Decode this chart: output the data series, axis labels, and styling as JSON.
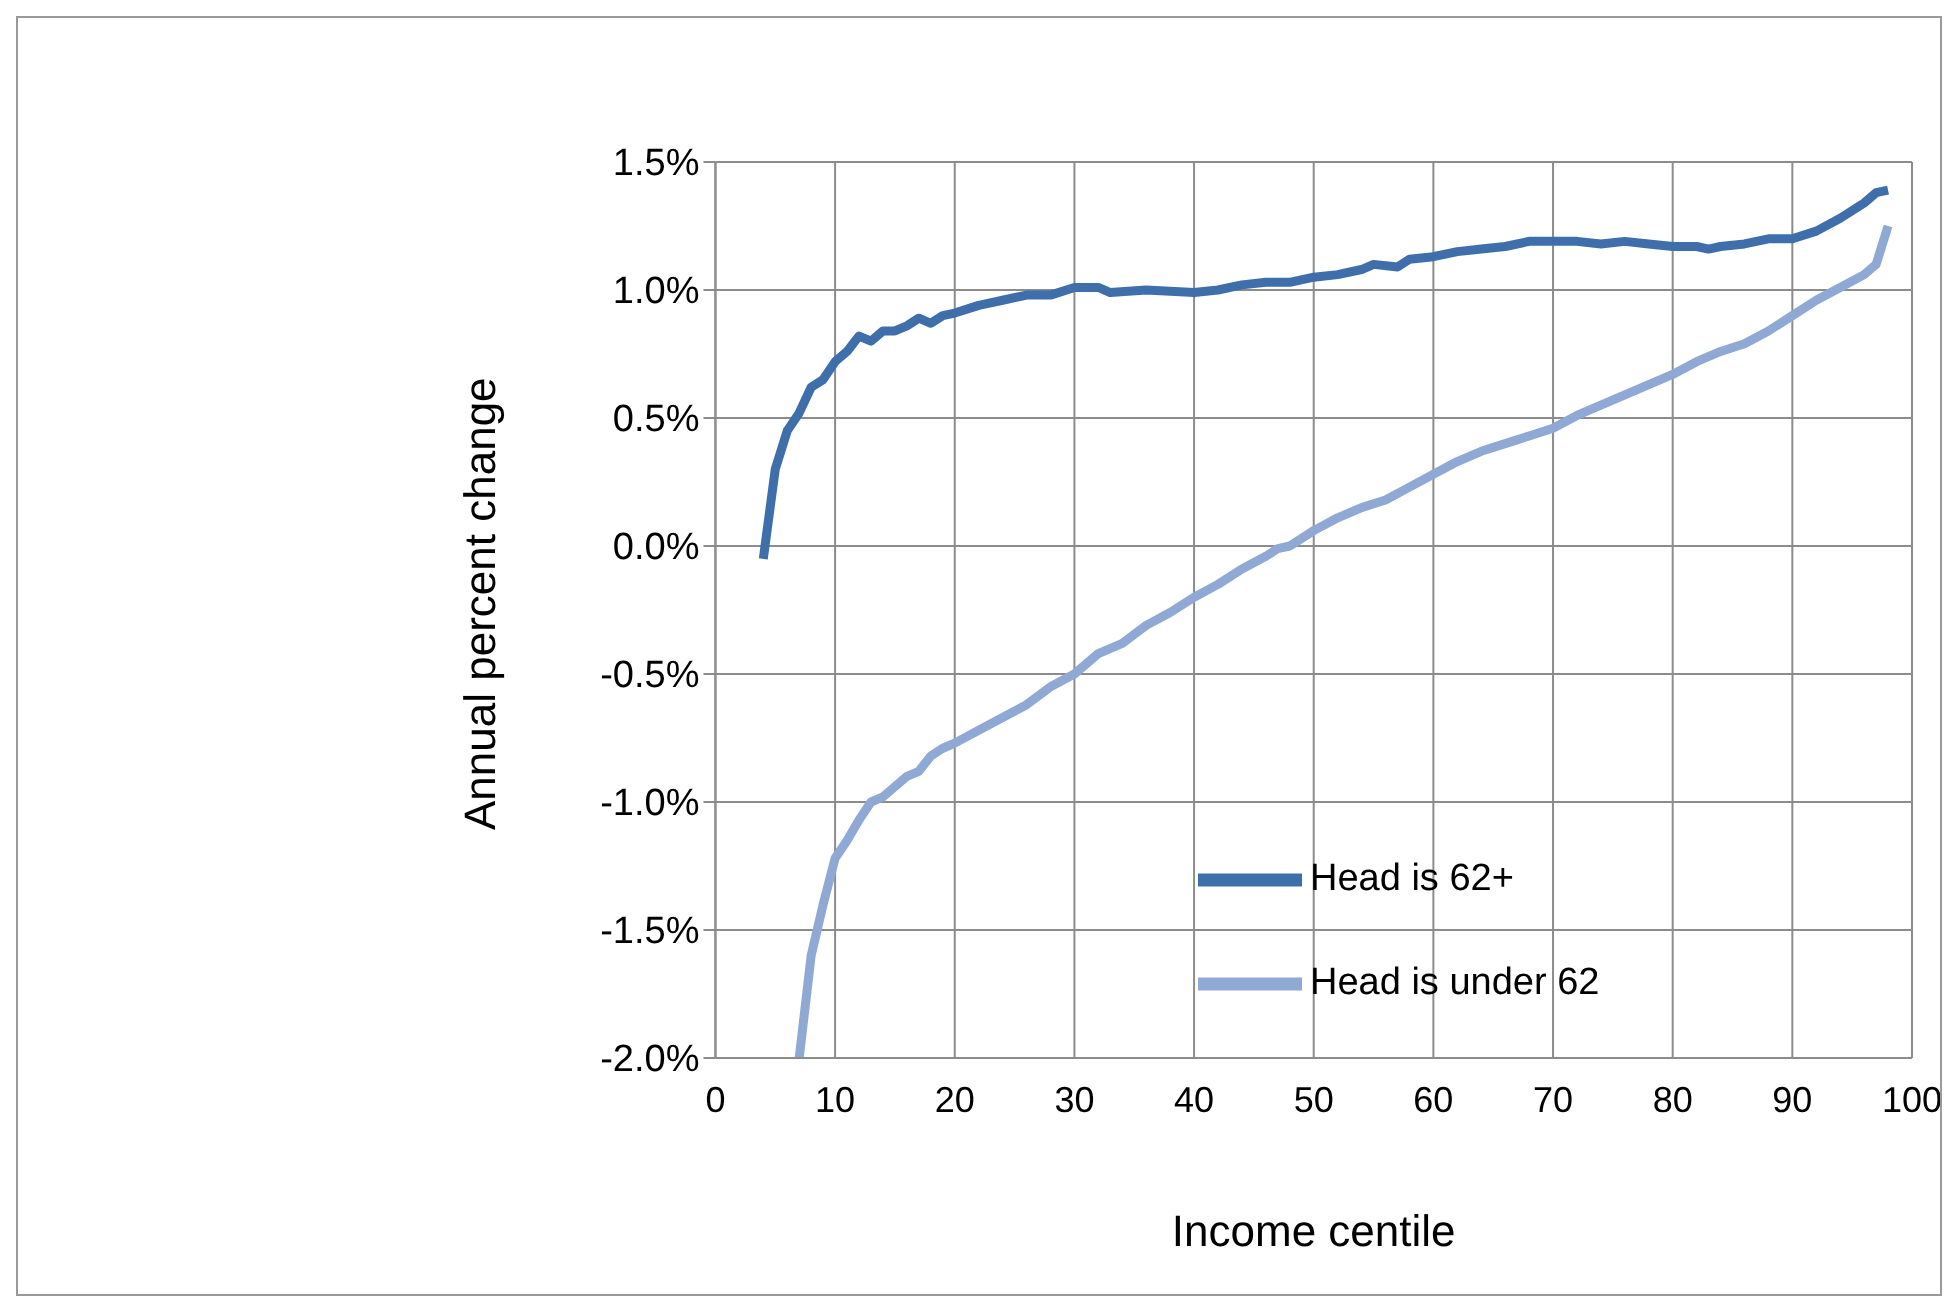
{
  "chart_data": {
    "type": "line",
    "xlabel": "Income centile",
    "ylabel": "Annual percent change",
    "xlim": [
      0,
      100
    ],
    "xticks": [
      0,
      10,
      20,
      30,
      40,
      50,
      60,
      70,
      80,
      90,
      100
    ],
    "ylim": [
      -2.0,
      1.5
    ],
    "yticks": [
      {
        "value": -2.0,
        "label": "-2.0%"
      },
      {
        "value": -1.5,
        "label": "-1.5%"
      },
      {
        "value": -1.0,
        "label": "-1.0%"
      },
      {
        "value": -0.5,
        "label": "-0.5%"
      },
      {
        "value": 0,
        "label": "0.0%"
      },
      {
        "value": 0.5,
        "label": "0.5%"
      },
      {
        "value": 1.0,
        "label": "1.0%"
      },
      {
        "value": 1.5,
        "label": "1.5%"
      }
    ],
    "grid": true,
    "legend": "bottom right",
    "marker": "none",
    "line_style": "solid",
    "series": [
      {
        "name": "Head is 62+",
        "color": "#3f6fab",
        "x": [
          4,
          5,
          6,
          7,
          8,
          9,
          10,
          11,
          12,
          13,
          14,
          15,
          16,
          17,
          18,
          19,
          20,
          22,
          24,
          26,
          28,
          30,
          32,
          33,
          36,
          40,
          42,
          44,
          46,
          48,
          50,
          52,
          54,
          55,
          57,
          58,
          60,
          62,
          64,
          66,
          68,
          70,
          72,
          74,
          76,
          78,
          80,
          82,
          83,
          84,
          86,
          88,
          90,
          92,
          94,
          96,
          97,
          98
        ],
        "values": [
          -0.05,
          0.3,
          0.45,
          0.52,
          0.62,
          0.65,
          0.72,
          0.76,
          0.82,
          0.8,
          0.84,
          0.84,
          0.86,
          0.89,
          0.87,
          0.9,
          0.91,
          0.94,
          0.96,
          0.98,
          0.98,
          1.01,
          1.01,
          0.99,
          1.0,
          0.99,
          1.0,
          1.02,
          1.03,
          1.03,
          1.05,
          1.06,
          1.08,
          1.1,
          1.09,
          1.12,
          1.13,
          1.15,
          1.16,
          1.17,
          1.19,
          1.19,
          1.19,
          1.18,
          1.19,
          1.18,
          1.17,
          1.17,
          1.16,
          1.17,
          1.18,
          1.2,
          1.2,
          1.23,
          1.28,
          1.34,
          1.38,
          1.39
        ]
      },
      {
        "name": "Head is under 62",
        "color": "#8fa9d4",
        "x": [
          7,
          8,
          9,
          10,
          11,
          12,
          13,
          14,
          15,
          16,
          17,
          18,
          19,
          20,
          22,
          24,
          26,
          28,
          30,
          32,
          34,
          36,
          38,
          40,
          42,
          44,
          46,
          47,
          48,
          50,
          52,
          54,
          56,
          58,
          60,
          62,
          64,
          66,
          68,
          70,
          72,
          74,
          76,
          78,
          80,
          82,
          84,
          86,
          88,
          90,
          92,
          94,
          96,
          97,
          98
        ],
        "values": [
          -2.0,
          -1.6,
          -1.4,
          -1.22,
          -1.15,
          -1.07,
          -1.0,
          -0.98,
          -0.94,
          -0.9,
          -0.88,
          -0.82,
          -0.79,
          -0.77,
          -0.72,
          -0.67,
          -0.62,
          -0.55,
          -0.5,
          -0.42,
          -0.38,
          -0.31,
          -0.26,
          -0.2,
          -0.15,
          -0.09,
          -0.04,
          -0.01,
          0.0,
          0.06,
          0.11,
          0.15,
          0.18,
          0.23,
          0.28,
          0.33,
          0.37,
          0.4,
          0.43,
          0.46,
          0.51,
          0.55,
          0.59,
          0.63,
          0.67,
          0.72,
          0.76,
          0.79,
          0.84,
          0.9,
          0.96,
          1.01,
          1.06,
          1.1,
          1.25
        ]
      }
    ]
  }
}
